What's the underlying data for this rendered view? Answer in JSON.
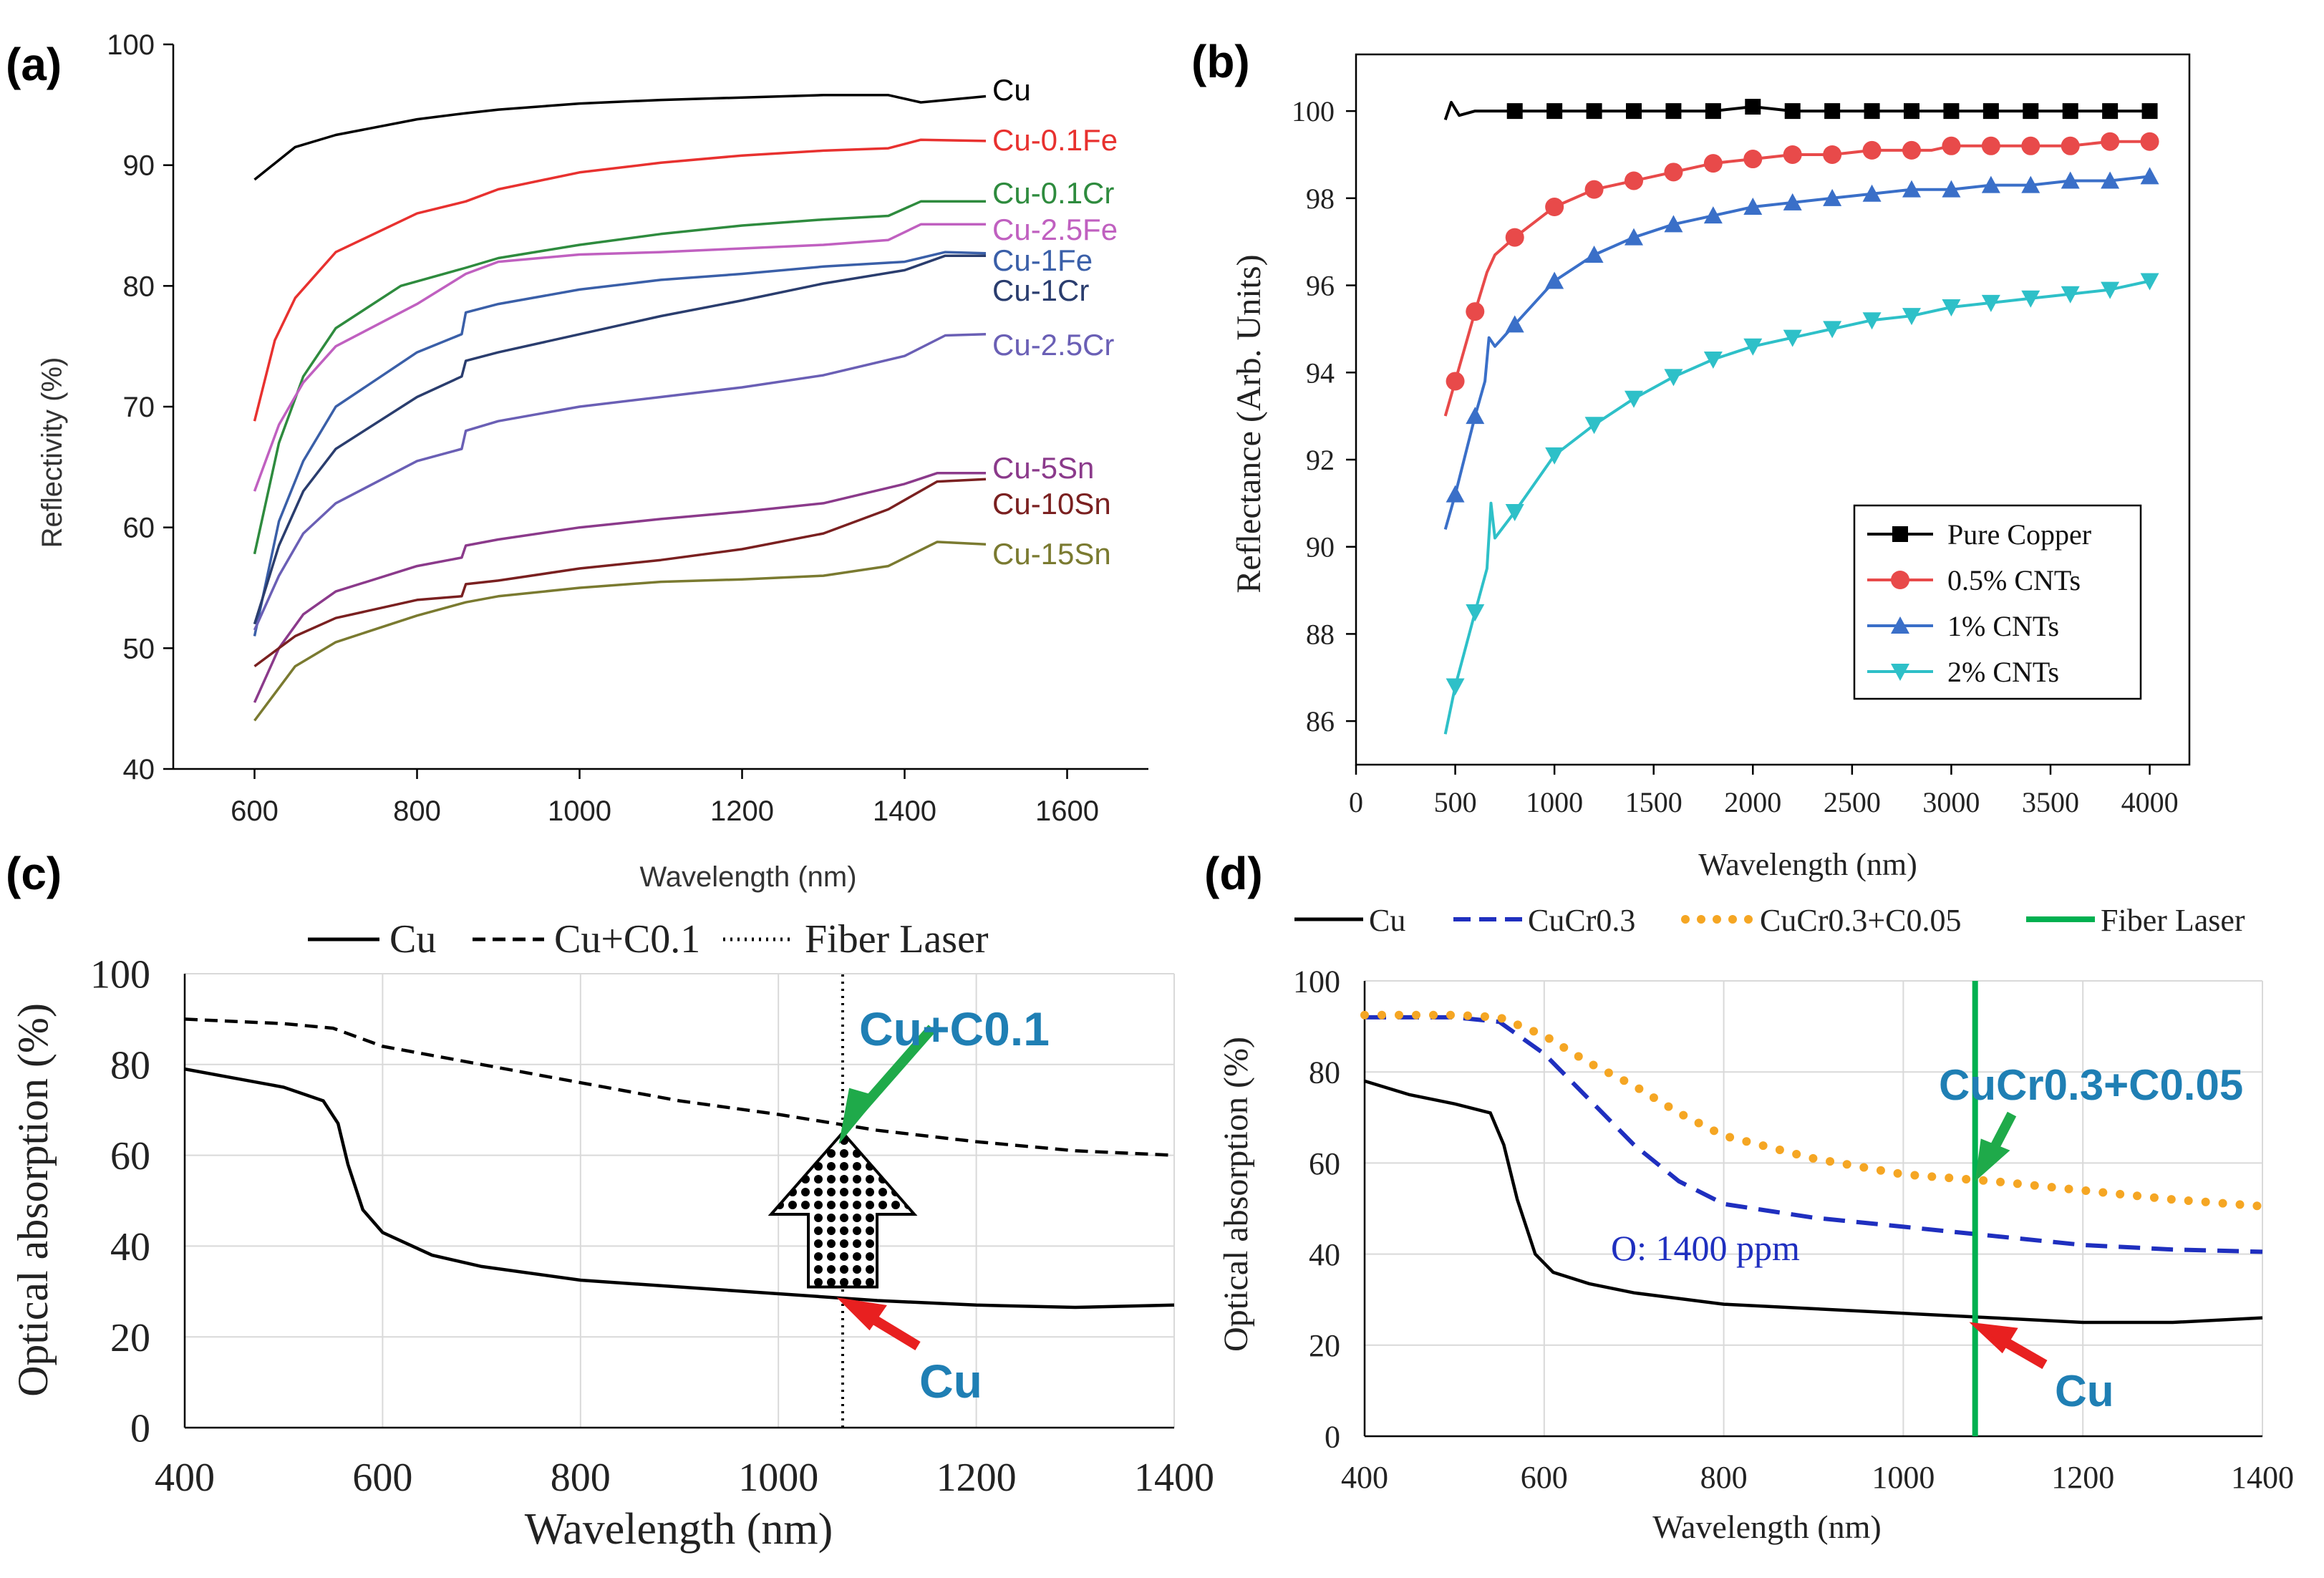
{
  "chart_data": [
    {
      "id": "a",
      "panel_label": "(a)",
      "type": "line",
      "xlabel": "Wavelength (nm)",
      "ylabel": "Reflectivity (%)",
      "xlim": [
        500,
        1700
      ],
      "ylim": [
        40,
        100
      ],
      "xticks": [
        "600",
        "800",
        "1000",
        "1200",
        "1400",
        "1600"
      ],
      "yticks": [
        "40",
        "50",
        "60",
        "70",
        "80",
        "90",
        "100"
      ],
      "xtick_values": [
        600,
        800,
        1000,
        1200,
        1400,
        1600
      ],
      "ytick_values": [
        40,
        50,
        60,
        70,
        80,
        90,
        100
      ],
      "series": [
        {
          "name": "Cu",
          "color": "#000000",
          "x": [
            600,
            650,
            700,
            800,
            860,
            900,
            1000,
            1100,
            1200,
            1300,
            1380,
            1420,
            1500
          ],
          "y": [
            88.8,
            91.5,
            92.5,
            93.8,
            94.3,
            94.6,
            95.1,
            95.4,
            95.6,
            95.8,
            95.8,
            95.2,
            95.7
          ]
        },
        {
          "name": "Cu-0.1Fe",
          "color": "#e8312f",
          "x": [
            600,
            625,
            650,
            700,
            800,
            860,
            900,
            1000,
            1100,
            1200,
            1300,
            1380,
            1420,
            1500
          ],
          "y": [
            68.8,
            75.5,
            79,
            82.8,
            86,
            87,
            88,
            89.4,
            90.2,
            90.8,
            91.2,
            91.4,
            92.1,
            92
          ]
        },
        {
          "name": "Cu-0.1Cr",
          "color": "#2e8b3e",
          "x": [
            600,
            630,
            660,
            700,
            780,
            860,
            900,
            1000,
            1100,
            1200,
            1300,
            1380,
            1420,
            1500
          ],
          "y": [
            57.8,
            67,
            72.5,
            76.5,
            80,
            81.5,
            82.3,
            83.4,
            84.3,
            85,
            85.5,
            85.8,
            87,
            87
          ]
        },
        {
          "name": "Cu-2.5Fe",
          "color": "#c060c0",
          "x": [
            600,
            630,
            660,
            700,
            800,
            860,
            900,
            1000,
            1100,
            1200,
            1300,
            1380,
            1420,
            1500
          ],
          "y": [
            63,
            68.5,
            72,
            75,
            78.5,
            81,
            82,
            82.6,
            82.8,
            83.1,
            83.4,
            83.8,
            85.1,
            85.1
          ]
        },
        {
          "name": "Cu-1Fe",
          "color": "#3a5fa8",
          "x": [
            600,
            630,
            660,
            700,
            800,
            855,
            860,
            900,
            1000,
            1100,
            1200,
            1300,
            1400,
            1450,
            1500
          ],
          "y": [
            51,
            60.5,
            65.5,
            70,
            74.5,
            76,
            77.8,
            78.5,
            79.7,
            80.5,
            81,
            81.6,
            82,
            82.8,
            82.7
          ]
        },
        {
          "name": "Cu-1Cr",
          "color": "#2a3d6e",
          "x": [
            600,
            630,
            660,
            700,
            800,
            855,
            860,
            900,
            1000,
            1100,
            1200,
            1300,
            1400,
            1450,
            1500
          ],
          "y": [
            52,
            58.5,
            63,
            66.5,
            70.8,
            72.5,
            73.8,
            74.5,
            76,
            77.5,
            78.8,
            80.2,
            81.3,
            82.5,
            82.5
          ]
        },
        {
          "name": "Cu-2.5Cr",
          "color": "#6a5fb5",
          "x": [
            600,
            630,
            660,
            700,
            800,
            855,
            860,
            900,
            1000,
            1100,
            1200,
            1300,
            1400,
            1450,
            1500
          ],
          "y": [
            51.5,
            56,
            59.5,
            62,
            65.5,
            66.5,
            68,
            68.8,
            70,
            70.8,
            71.6,
            72.6,
            74.2,
            75.9,
            76
          ]
        },
        {
          "name": "Cu-5Sn",
          "color": "#8b3a8b",
          "x": [
            600,
            630,
            660,
            700,
            800,
            855,
            860,
            900,
            1000,
            1100,
            1200,
            1300,
            1400,
            1440,
            1500
          ],
          "y": [
            45.5,
            50,
            52.8,
            54.7,
            56.8,
            57.5,
            58.5,
            59,
            60,
            60.7,
            61.3,
            62,
            63.6,
            64.5,
            64.5
          ]
        },
        {
          "name": "Cu-10Sn",
          "color": "#7a2020",
          "x": [
            600,
            650,
            700,
            800,
            855,
            860,
            900,
            1000,
            1100,
            1200,
            1300,
            1380,
            1440,
            1500
          ],
          "y": [
            48.5,
            51,
            52.5,
            54,
            54.3,
            55.3,
            55.6,
            56.6,
            57.3,
            58.2,
            59.5,
            61.5,
            63.8,
            64
          ]
        },
        {
          "name": "Cu-15Sn",
          "color": "#7a7a30",
          "x": [
            600,
            650,
            700,
            800,
            860,
            900,
            1000,
            1100,
            1200,
            1300,
            1380,
            1440,
            1500
          ],
          "y": [
            44,
            48.5,
            50.5,
            52.7,
            53.8,
            54.3,
            55,
            55.5,
            55.7,
            56,
            56.8,
            58.8,
            58.6
          ]
        }
      ]
    },
    {
      "id": "b",
      "panel_label": "(b)",
      "type": "line",
      "xlabel": "Wavelength (nm)",
      "ylabel": "Reflectance (Arb. Units)",
      "xlim": [
        0,
        4200
      ],
      "ylim": [
        85,
        101.3
      ],
      "xticks": [
        "0",
        "500",
        "1000",
        "1500",
        "2000",
        "2500",
        "3000",
        "3500",
        "4000"
      ],
      "yticks": [
        "86",
        "88",
        "90",
        "92",
        "94",
        "96",
        "98",
        "100"
      ],
      "xtick_values": [
        0,
        500,
        1000,
        1500,
        2000,
        2500,
        3000,
        3500,
        4000
      ],
      "ytick_values": [
        86,
        88,
        90,
        92,
        94,
        96,
        98,
        100
      ],
      "series": [
        {
          "name": "Pure Copper",
          "color": "#000000",
          "marker": "square",
          "x": [
            450,
            480,
            520,
            600,
            700,
            800,
            1000,
            1200,
            1400,
            1600,
            1800,
            2000,
            2200,
            2400,
            2600,
            2800,
            3000,
            3200,
            3400,
            3600,
            3800,
            4000
          ],
          "y": [
            99.8,
            100.2,
            99.9,
            100,
            100,
            100,
            100,
            100,
            100,
            100,
            100,
            100.1,
            100,
            100,
            100,
            100,
            100,
            100,
            100,
            100,
            100,
            100
          ]
        },
        {
          "name": "0.5% CNTs",
          "color": "#e84a4a",
          "marker": "circle",
          "x": [
            450,
            500,
            600,
            660,
            700,
            800,
            1000,
            1200,
            1400,
            1600,
            1800,
            2000,
            2200,
            2400,
            2600,
            2800,
            2900,
            3000,
            3200,
            3400,
            3600,
            3800,
            4000
          ],
          "y": [
            93,
            93.8,
            95.4,
            96.3,
            96.7,
            97.1,
            97.8,
            98.2,
            98.4,
            98.6,
            98.8,
            98.9,
            99,
            99,
            99.1,
            99.1,
            99.1,
            99.2,
            99.2,
            99.2,
            99.2,
            99.3,
            99.3
          ]
        },
        {
          "name": "1% CNTs",
          "color": "#3a6fc8",
          "marker": "triangle-up",
          "x": [
            450,
            500,
            600,
            650,
            670,
            700,
            800,
            1000,
            1200,
            1400,
            1600,
            1800,
            2000,
            2200,
            2400,
            2600,
            2800,
            3000,
            3200,
            3400,
            3600,
            3800,
            4000
          ],
          "y": [
            90.4,
            91.2,
            93,
            93.8,
            94.8,
            94.6,
            95.1,
            96.1,
            96.7,
            97.1,
            97.4,
            97.6,
            97.8,
            97.9,
            98,
            98.1,
            98.2,
            98.2,
            98.3,
            98.3,
            98.4,
            98.4,
            98.5
          ]
        },
        {
          "name": "2% CNTs",
          "color": "#2ec0c8",
          "marker": "triangle-down",
          "x": [
            450,
            500,
            600,
            660,
            680,
            700,
            800,
            1000,
            1200,
            1400,
            1600,
            1800,
            2000,
            2200,
            2400,
            2600,
            2800,
            3000,
            3200,
            3400,
            3600,
            3800,
            4000
          ],
          "y": [
            85.7,
            86.8,
            88.5,
            89.5,
            91,
            90.2,
            90.8,
            92.1,
            92.8,
            93.4,
            93.9,
            94.3,
            94.6,
            94.8,
            95,
            95.2,
            95.3,
            95.5,
            95.6,
            95.7,
            95.8,
            95.9,
            96.1
          ]
        }
      ]
    },
    {
      "id": "c",
      "panel_label": "(c)",
      "type": "line",
      "xlabel": "Wavelength (nm)",
      "ylabel": "Optical absorption (%)",
      "xlim": [
        400,
        1400
      ],
      "ylim": [
        0,
        100
      ],
      "xticks": [
        "400",
        "600",
        "800",
        "1000",
        "1200",
        "1400"
      ],
      "yticks": [
        "0",
        "20",
        "40",
        "60",
        "80",
        "100"
      ],
      "xtick_values": [
        400,
        600,
        800,
        1000,
        1200,
        1400
      ],
      "ytick_values": [
        0,
        20,
        40,
        60,
        80,
        100
      ],
      "grid": true,
      "legend": [
        "Cu",
        "Cu+C0.1",
        "Fiber Laser"
      ],
      "series": [
        {
          "name": "Cu",
          "color": "#000000",
          "style": "solid",
          "x": [
            400,
            450,
            500,
            540,
            555,
            565,
            580,
            600,
            650,
            700,
            800,
            900,
            1000,
            1100,
            1200,
            1300,
            1400
          ],
          "y": [
            79,
            77,
            75,
            72,
            67,
            58,
            48,
            43,
            38,
            35.5,
            32.5,
            31,
            29.5,
            28,
            27,
            26.5,
            27
          ]
        },
        {
          "name": "Cu+C0.1",
          "color": "#000000",
          "style": "dashed",
          "x": [
            400,
            450,
            500,
            550,
            600,
            700,
            800,
            900,
            1000,
            1100,
            1200,
            1300,
            1400
          ],
          "y": [
            90,
            89.5,
            89,
            88,
            84,
            80,
            76,
            72,
            69,
            65.5,
            63,
            61,
            60
          ]
        },
        {
          "name": "Fiber Laser",
          "color": "#000000",
          "style": "dotted",
          "x": [
            1065,
            1065
          ],
          "y": [
            0,
            100
          ]
        }
      ],
      "annotations": [
        {
          "text": "Cu+C0.1",
          "x": 1070,
          "y": 67,
          "color": "#1f7fb4"
        },
        {
          "text": "Cu",
          "x": 1070,
          "y": 29,
          "color": "#1f7fb4"
        }
      ]
    },
    {
      "id": "d",
      "panel_label": "(d)",
      "type": "line",
      "xlabel": "Wavelength  (nm)",
      "ylabel": "Optical absorption  (%)",
      "xlim": [
        400,
        1400
      ],
      "ylim": [
        0,
        100
      ],
      "xticks": [
        "400",
        "600",
        "800",
        "1000",
        "1200",
        "1400"
      ],
      "yticks": [
        "0",
        "20",
        "40",
        "60",
        "80",
        "100"
      ],
      "xtick_values": [
        400,
        600,
        800,
        1000,
        1200,
        1400
      ],
      "ytick_values": [
        0,
        20,
        40,
        60,
        80,
        100
      ],
      "grid": true,
      "legend": [
        "Cu",
        "CuCr0.3",
        "CuCr0.3+C0.05",
        "Fiber Laser"
      ],
      "series": [
        {
          "name": "Cu",
          "color": "#000000",
          "style": "solid",
          "x": [
            400,
            450,
            500,
            540,
            555,
            570,
            590,
            610,
            650,
            700,
            800,
            900,
            1000,
            1100,
            1200,
            1300,
            1400
          ],
          "y": [
            78,
            75,
            73,
            71,
            64,
            52,
            40,
            36,
            33.5,
            31.5,
            29,
            28,
            27,
            26,
            25,
            25,
            26
          ]
        },
        {
          "name": "CuCr0.3",
          "color": "#1f2fbf",
          "style": "dashed",
          "x": [
            400,
            450,
            500,
            550,
            600,
            650,
            700,
            750,
            800,
            900,
            1000,
            1100,
            1200,
            1300,
            1400
          ],
          "y": [
            92,
            92,
            92,
            91,
            84,
            74,
            64,
            56,
            51,
            48,
            46,
            44,
            42,
            41,
            40.5
          ]
        },
        {
          "name": "CuCr0.3+C0.05",
          "color": "#f5a623",
          "style": "dotted",
          "x": [
            400,
            450,
            500,
            550,
            600,
            650,
            700,
            750,
            800,
            900,
            1000,
            1100,
            1200,
            1300,
            1400
          ],
          "y": [
            92.5,
            92.5,
            92.5,
            92,
            88,
            82,
            77,
            71,
            66,
            61,
            57.5,
            56,
            54,
            52,
            50.5
          ]
        },
        {
          "name": "Fiber Laser",
          "color": "#00b050",
          "style": "solid",
          "x": [
            1080,
            1080
          ],
          "y": [
            0,
            100
          ]
        }
      ],
      "annotations": [
        {
          "text": "O: 1400 ppm",
          "x": 680,
          "y": 42.5,
          "color": "#1f2fbf"
        },
        {
          "text": "CuCr0.3+C0.05",
          "x": 1085,
          "y": 57,
          "color": "#1f7fb4"
        },
        {
          "text": "Cu",
          "x": 1085,
          "y": 26,
          "color": "#1f7fb4"
        }
      ]
    }
  ]
}
